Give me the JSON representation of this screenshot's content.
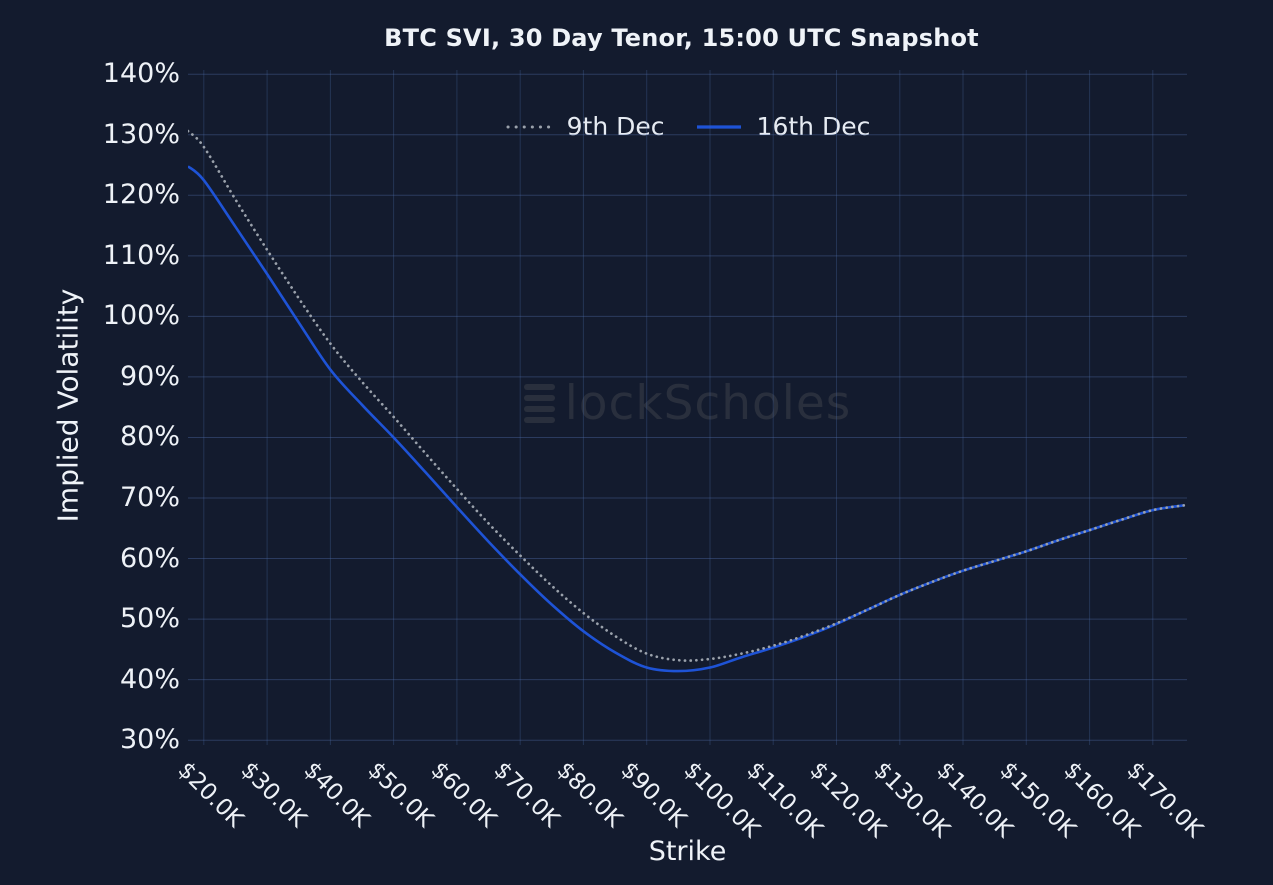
{
  "watermark": {
    "brand": "BlockScholes",
    "text_after_logo": "lockScholes"
  },
  "colors": {
    "background": "#131b2e",
    "grid": "#4c6aa5",
    "text": "#eef2f7",
    "series_16th_dec": "#1e53d6",
    "series_9th_dec": "#9aa1ab",
    "watermark": "rgba(160,158,146,0.16)"
  },
  "chart_data": {
    "type": "line",
    "title": "BTC SVI, 30 Day Tenor, 15:00 UTC Snapshot",
    "xlabel": "Strike",
    "ylabel": "Implied Volatility",
    "legend_position": "top-center",
    "grid": true,
    "xlim": [
      17.5,
      175.4
    ],
    "ylim": [
      29.2,
      140.7
    ],
    "x_unit": "USD (thousands)",
    "y_unit": "percent",
    "x_ticks": {
      "values": [
        20,
        30,
        40,
        50,
        60,
        70,
        80,
        90,
        100,
        110,
        120,
        130,
        140,
        150,
        160,
        170
      ],
      "labels": [
        "$20.0K",
        "$30.0K",
        "$40.0K",
        "$50.0K",
        "$60.0K",
        "$70.0K",
        "$80.0K",
        "$90.0K",
        "$100.0K",
        "$110.0K",
        "$120.0K",
        "$130.0K",
        "$140.0K",
        "$150.0K",
        "$160.0K",
        "$170.0K"
      ]
    },
    "y_ticks": {
      "values": [
        30,
        40,
        50,
        60,
        70,
        80,
        90,
        100,
        110,
        120,
        130,
        140
      ],
      "labels": [
        "30%",
        "40%",
        "50%",
        "60%",
        "70%",
        "80%",
        "90%",
        "100%",
        "110%",
        "120%",
        "130%",
        "140%"
      ]
    },
    "x": [
      17.5,
      20,
      25,
      30,
      35,
      40,
      45,
      50,
      55,
      60,
      65,
      70,
      75,
      80,
      85,
      90,
      95,
      100,
      105,
      110,
      115,
      120,
      125,
      130,
      135,
      140,
      145,
      150,
      155,
      160,
      165,
      170,
      175
    ],
    "series": [
      {
        "name": "9th Dec",
        "line_style": "dotted",
        "color": "#9aa1ab",
        "values": [
          130.6,
          128.0,
          119.3,
          111.0,
          103.0,
          95.5,
          89.2,
          83.4,
          77.4,
          71.5,
          65.8,
          60.5,
          55.5,
          51.0,
          47.2,
          44.3,
          43.2,
          43.4,
          44.3,
          45.6,
          47.3,
          49.3,
          51.6,
          54.0,
          56.1,
          58.0,
          59.6,
          61.2,
          63.0,
          64.7,
          66.4,
          68.0,
          68.8
        ]
      },
      {
        "name": "16th Dec",
        "line_style": "solid",
        "color": "#1e53d6",
        "values": [
          124.8,
          122.5,
          114.8,
          107.0,
          99.0,
          91.2,
          85.4,
          80.0,
          74.3,
          68.5,
          62.8,
          57.4,
          52.4,
          48.0,
          44.5,
          42.0,
          41.4,
          42.0,
          43.7,
          45.3,
          47.1,
          49.2,
          51.6,
          54.0,
          56.1,
          58.0,
          59.6,
          61.2,
          63.0,
          64.7,
          66.4,
          68.0,
          68.8
        ]
      }
    ]
  }
}
